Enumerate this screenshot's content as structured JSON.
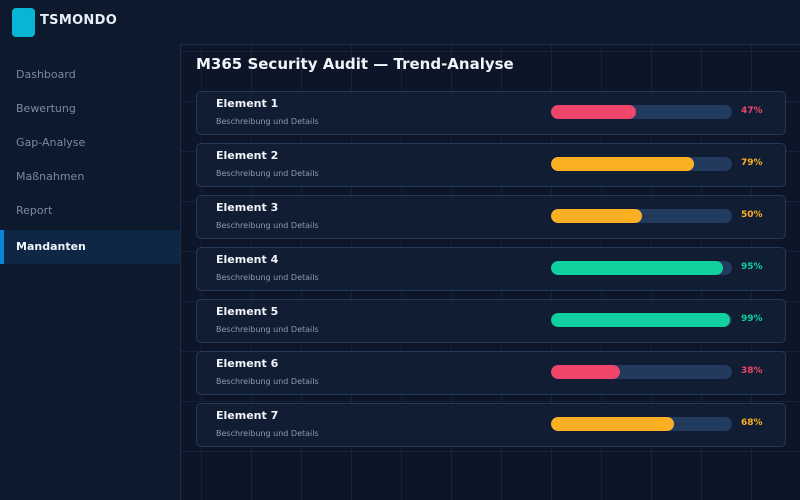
{
  "app": {
    "brand": "TSMONDO"
  },
  "sidebar": {
    "items": [
      {
        "label": "Dashboard",
        "active": false
      },
      {
        "label": "Bewertung",
        "active": false
      },
      {
        "label": "Gap-Analyse",
        "active": false
      },
      {
        "label": "Maßnahmen",
        "active": false
      },
      {
        "label": "Report",
        "active": false
      },
      {
        "label": "Mandanten",
        "active": true
      }
    ]
  },
  "main": {
    "title": "M365 Security Audit — Trend-Analyse",
    "items": [
      {
        "title": "Element 1",
        "description": "Beschreibung und Details",
        "percent_label": "47%",
        "value": 47,
        "color": "#f0456b"
      },
      {
        "title": "Element 2",
        "description": "Beschreibung und Details",
        "percent_label": "79%",
        "value": 79,
        "color": "#fbb023"
      },
      {
        "title": "Element 3",
        "description": "Beschreibung und Details",
        "percent_label": "50%",
        "value": 50,
        "color": "#fbb023"
      },
      {
        "title": "Element 4",
        "description": "Beschreibung und Details",
        "percent_label": "95%",
        "value": 95,
        "color": "#10d19e"
      },
      {
        "title": "Element 5",
        "description": "Beschreibung und Details",
        "percent_label": "99%",
        "value": 99,
        "color": "#10d19e"
      },
      {
        "title": "Element 6",
        "description": "Beschreibung und Details",
        "percent_label": "38%",
        "value": 38,
        "color": "#f0456b"
      },
      {
        "title": "Element 7",
        "description": "Beschreibung und Details",
        "percent_label": "68%",
        "value": 68,
        "color": "#fbb023"
      }
    ]
  },
  "colors": {
    "accent": "#0a84d8",
    "logo": "#06b6d4",
    "status_bad": "#f0456b",
    "status_warn": "#fbb023",
    "status_good": "#10d19e"
  }
}
